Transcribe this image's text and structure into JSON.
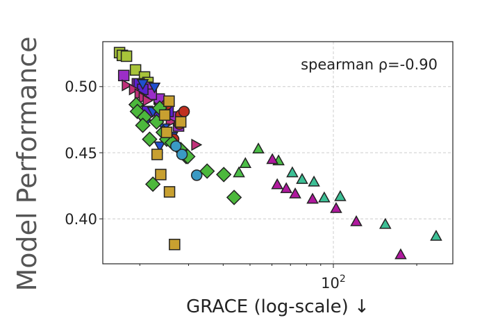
{
  "chart_data": {
    "type": "scatter",
    "title": "",
    "xlabel": "GRACE (log-scale) ↓",
    "ylabel": "Model Performance",
    "xscale": "log",
    "xlim": [
      14.7,
      270
    ],
    "ylim": [
      0.366,
      0.534
    ],
    "yticks": [
      0.4,
      0.45,
      0.5
    ],
    "ytick_labels": [
      "0.40",
      "0.45",
      "0.50"
    ],
    "xticks": [
      100
    ],
    "xtick_labels": [
      "10",
      "2"
    ],
    "x_minor_ticks": [
      20,
      30,
      40,
      50,
      60,
      70,
      80,
      90,
      200
    ],
    "grid": true,
    "annotation": "spearman ρ=-0.90",
    "series": [
      {
        "marker": "square",
        "color": "#a8c43a",
        "points": [
          [
            16.9,
            0.5257
          ],
          [
            17.3,
            0.5236
          ],
          [
            17.9,
            0.523
          ],
          [
            19.3,
            0.5126
          ],
          [
            20.8,
            0.5073
          ],
          [
            21.4,
            0.5031
          ],
          [
            23.9,
            0.4864
          ]
        ]
      },
      {
        "marker": "square",
        "color": "#9b2ec8",
        "points": [
          [
            17.5,
            0.5084
          ],
          [
            19.6,
            0.5021
          ],
          [
            21.2,
            0.4995
          ],
          [
            23.5,
            0.4906
          ],
          [
            26.4,
            0.477
          ],
          [
            27.6,
            0.4702
          ],
          [
            22.0,
            0.4942
          ]
        ]
      },
      {
        "marker": "square",
        "color": "#5a22d0",
        "points": [
          [
            19.9,
            0.5021
          ],
          [
            20.5,
            0.4979
          ],
          [
            21.3,
            0.4812
          ],
          [
            25.3,
            0.4812
          ],
          [
            23.6,
            0.4785
          ]
        ]
      },
      {
        "marker": "triangle-right",
        "color": "#c0307a",
        "points": [
          [
            17.9,
            0.501
          ],
          [
            19.0,
            0.4979
          ],
          [
            19.9,
            0.4942
          ],
          [
            20.6,
            0.4916
          ],
          [
            21.3,
            0.4895
          ],
          [
            23.5,
            0.4838
          ],
          [
            31.9,
            0.456
          ],
          [
            25.8,
            0.4733
          ]
        ]
      },
      {
        "marker": "triangle-down",
        "color": "#1f50d0",
        "points": [
          [
            20.9,
            0.4717
          ],
          [
            23.6,
            0.455
          ],
          [
            22.3,
            0.4812
          ],
          [
            24.5,
            0.4686
          ],
          [
            26.2,
            0.4623
          ],
          [
            20.5,
            0.5021
          ],
          [
            22.6,
            0.4995
          ]
        ]
      },
      {
        "marker": "circle",
        "color": "#c03020",
        "points": [
          [
            28.1,
            0.4785
          ],
          [
            27.8,
            0.4717
          ],
          [
            26.5,
            0.4602
          ],
          [
            25.0,
            0.4864
          ],
          [
            28.9,
            0.4812
          ]
        ]
      },
      {
        "marker": "diamond",
        "color": "#4cb83c",
        "points": [
          [
            19.4,
            0.4864
          ],
          [
            19.6,
            0.4812
          ],
          [
            20.8,
            0.477
          ],
          [
            20.5,
            0.4707
          ],
          [
            21.7,
            0.4602
          ],
          [
            24.3,
            0.4654
          ],
          [
            25.0,
            0.4602
          ],
          [
            26.2,
            0.4576
          ],
          [
            28.1,
            0.4524
          ],
          [
            29.4,
            0.4471
          ],
          [
            23.0,
            0.4733
          ],
          [
            23.6,
            0.4838
          ],
          [
            29.8,
            0.4471
          ],
          [
            22.3,
            0.4262
          ],
          [
            35.0,
            0.4361
          ],
          [
            40.2,
            0.4335
          ],
          [
            43.8,
            0.4162
          ]
        ]
      },
      {
        "marker": "square",
        "color": "#c8a030",
        "points": [
          [
            23.1,
            0.4487
          ],
          [
            23.8,
            0.4335
          ],
          [
            25.6,
            0.4204
          ],
          [
            26.7,
            0.3806
          ],
          [
            25.0,
            0.4654
          ],
          [
            24.6,
            0.4785
          ],
          [
            25.5,
            0.489
          ],
          [
            28.1,
            0.4733
          ]
        ]
      },
      {
        "marker": "circle",
        "color": "#3a9ac4",
        "points": [
          [
            27.0,
            0.455
          ],
          [
            28.4,
            0.4487
          ],
          [
            32.1,
            0.433
          ]
        ]
      },
      {
        "marker": "triangle-up",
        "color": "#4cbf48",
        "points": [
          [
            45.6,
            0.435
          ],
          [
            48.1,
            0.442
          ],
          [
            53.6,
            0.453
          ],
          [
            63.4,
            0.444
          ]
        ]
      },
      {
        "marker": "triangle-up",
        "color": "#3cbf95",
        "points": [
          [
            71.1,
            0.435
          ],
          [
            77.1,
            0.43
          ],
          [
            85.1,
            0.428
          ],
          [
            92.7,
            0.416
          ],
          [
            105.9,
            0.417
          ],
          [
            154,
            0.396
          ],
          [
            235,
            0.387
          ]
        ]
      },
      {
        "marker": "triangle-up",
        "color": "#b0199e",
        "points": [
          [
            60.2,
            0.445
          ],
          [
            62.7,
            0.426
          ],
          [
            67.6,
            0.423
          ],
          [
            72.8,
            0.419
          ],
          [
            84.1,
            0.415
          ],
          [
            102.3,
            0.408
          ],
          [
            121,
            0.398
          ],
          [
            175,
            0.373
          ]
        ]
      }
    ]
  }
}
